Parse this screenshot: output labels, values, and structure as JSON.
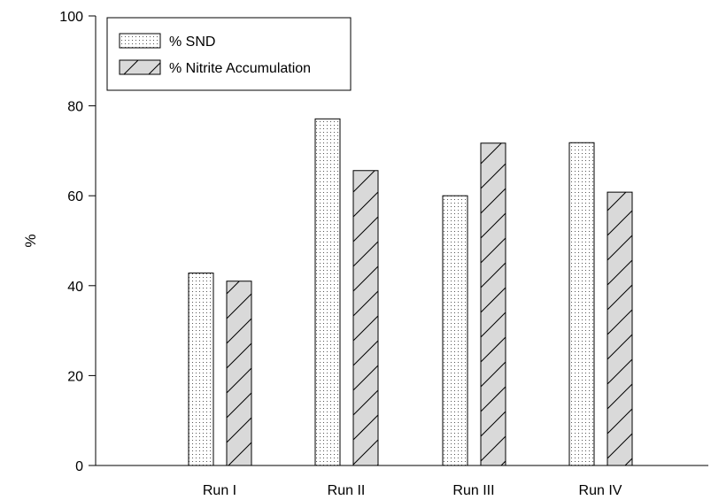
{
  "chart_data": {
    "type": "bar",
    "categories": [
      "Run I",
      "Run II",
      "Run III",
      "Run IV"
    ],
    "series": [
      {
        "name": "% SND",
        "values": [
          42.8,
          77.1,
          60.0,
          71.8
        ],
        "pattern": "dots",
        "color": "#ffffff"
      },
      {
        "name": "% Nitrite Accumulation",
        "values": [
          41.0,
          65.6,
          71.7,
          60.8
        ],
        "pattern": "hatch",
        "color": "#d9d9d9"
      }
    ],
    "title": "",
    "xlabel": "",
    "ylabel": "%",
    "ylim": [
      0,
      100
    ],
    "yticks": [
      0,
      20,
      40,
      60,
      80,
      100
    ],
    "grid": false,
    "legend_position": "top-left"
  }
}
